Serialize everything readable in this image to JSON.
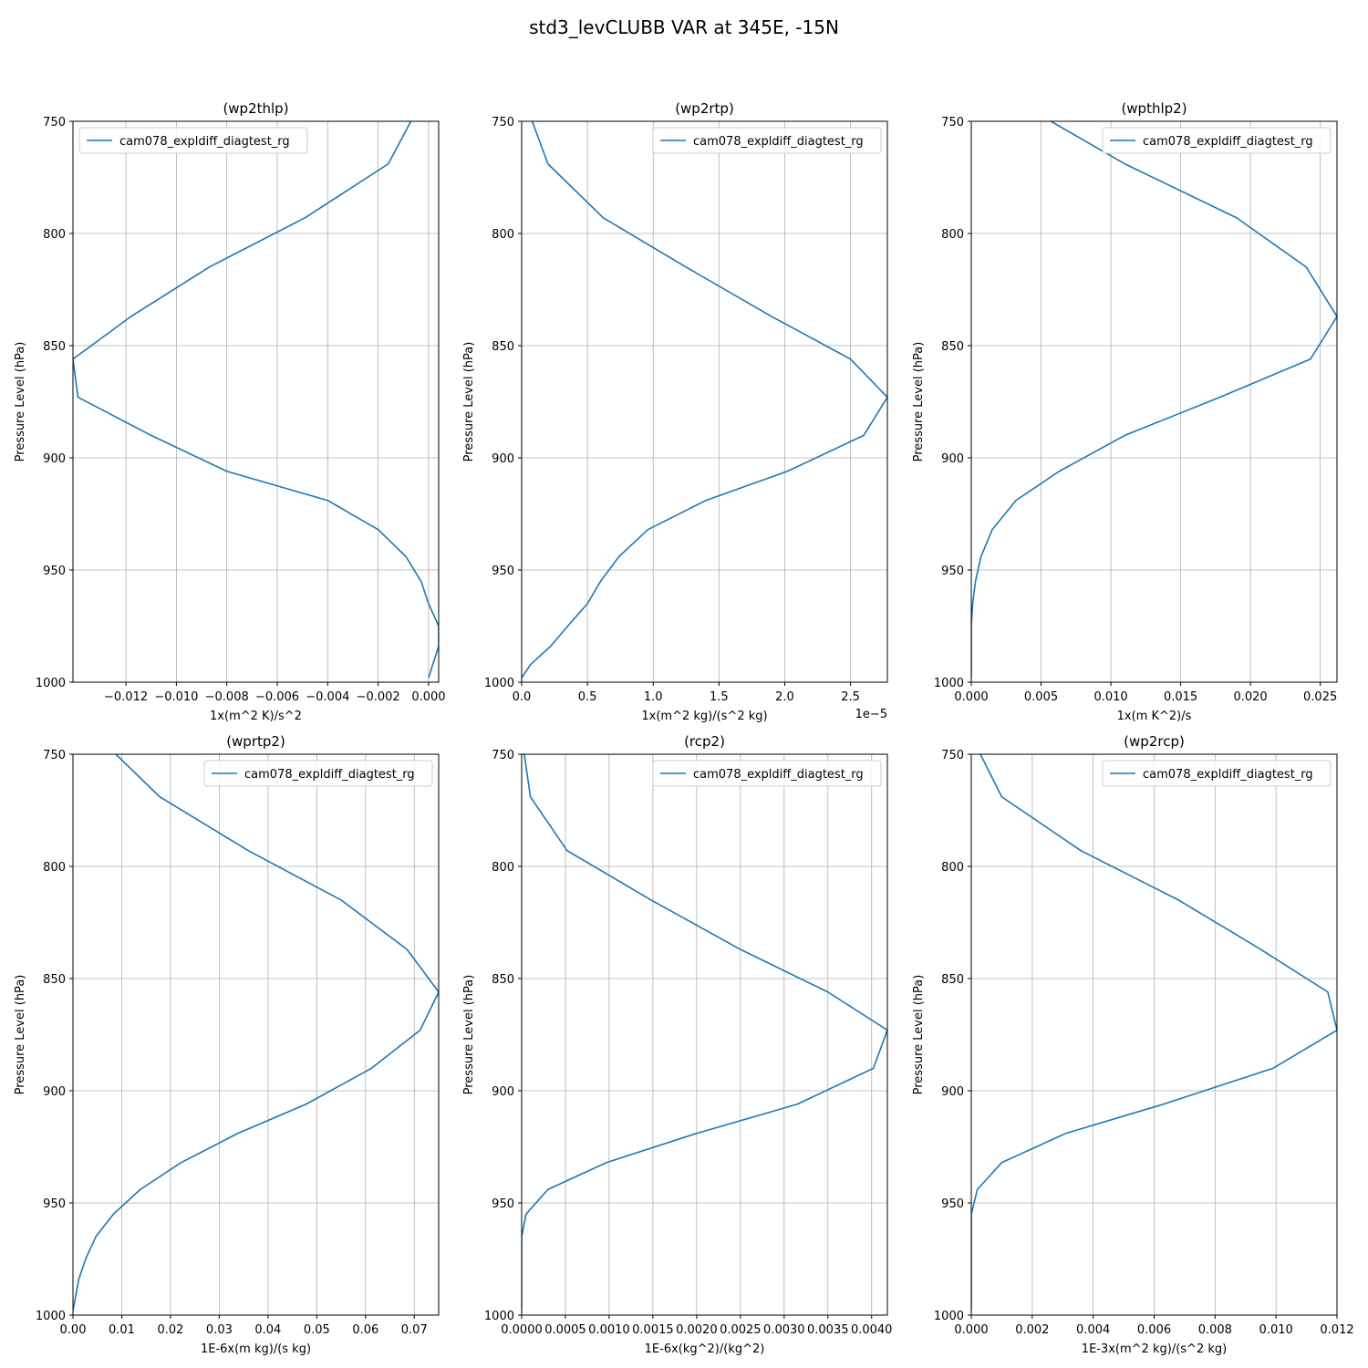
{
  "figure": {
    "title": "std3_levCLUBB VAR at 345E, -15N",
    "series_color": "#1f77b4",
    "grid_color": "#b0b0b0"
  },
  "chart_data": [
    {
      "type": "line",
      "title": "(wp2thlp)",
      "xlabel": "1x(m^2 K)/s^2",
      "ylabel": "Pressure Level (hPa)",
      "offset_text": "",
      "xlim": [
        -0.0141,
        0.0004
      ],
      "ylim": [
        1000,
        750
      ],
      "y_inverted": true,
      "grid": true,
      "legend_loc": "upper left",
      "xticks": [
        -0.012,
        -0.01,
        -0.008,
        -0.006,
        -0.004,
        -0.002,
        0.0
      ],
      "xtick_labels": [
        "−0.012",
        "−0.010",
        "−0.008",
        "−0.006",
        "−0.004",
        "−0.002",
        "0.000"
      ],
      "yticks": [
        750,
        800,
        850,
        900,
        950,
        1000
      ],
      "ytick_labels": [
        "750",
        "800",
        "850",
        "900",
        "950",
        "1000"
      ],
      "series": [
        {
          "name": "cam078_expldiff_diagtest_rg",
          "x": [
            -0.0007,
            -0.0016,
            -0.0049,
            -0.0087,
            -0.0118,
            -0.0141,
            -0.0139,
            -0.011,
            -0.008,
            -0.004,
            -0.002,
            -0.0009,
            -0.0003,
            0.0,
            0.0004,
            0.0004,
            0.0
          ],
          "y": [
            750,
            769,
            793,
            815,
            837,
            856,
            873,
            890,
            906,
            919,
            932,
            944,
            955,
            965,
            975,
            984,
            998
          ]
        }
      ]
    },
    {
      "type": "line",
      "title": "(wp2rtp)",
      "xlabel": "1x(m^2 kg)/(s^2 kg)",
      "ylabel": "Pressure Level (hPa)",
      "offset_text": "1e−5",
      "xlim": [
        0,
        2.78
      ],
      "ylim": [
        1000,
        750
      ],
      "y_inverted": true,
      "grid": true,
      "legend_loc": "upper right",
      "xticks": [
        0.0,
        0.5,
        1.0,
        1.5,
        2.0,
        2.5
      ],
      "xtick_labels": [
        "0.0",
        "0.5",
        "1.0",
        "1.5",
        "2.0",
        "2.5"
      ],
      "yticks": [
        750,
        800,
        850,
        900,
        950,
        1000
      ],
      "ytick_labels": [
        "750",
        "800",
        "850",
        "900",
        "950",
        "1000"
      ],
      "series": [
        {
          "name": "cam078_expldiff_diagtest_rg",
          "x": [
            0.08,
            0.2,
            0.62,
            1.25,
            1.9,
            2.5,
            2.78,
            2.6,
            2.02,
            1.4,
            0.96,
            0.74,
            0.6,
            0.5,
            0.35,
            0.22,
            0.07,
            0.0
          ],
          "y": [
            750,
            769,
            793,
            815,
            837,
            856,
            873,
            890,
            906,
            919,
            932,
            944,
            955,
            965,
            975,
            984,
            992,
            998
          ]
        }
      ]
    },
    {
      "type": "line",
      "title": "(wpthlp2)",
      "xlabel": "1x(m K^2)/s",
      "ylabel": "Pressure Level (hPa)",
      "offset_text": "",
      "xlim": [
        0,
        0.0262
      ],
      "ylim": [
        1000,
        750
      ],
      "y_inverted": true,
      "grid": true,
      "legend_loc": "upper right",
      "xticks": [
        0.0,
        0.005,
        0.01,
        0.015,
        0.02,
        0.025
      ],
      "xtick_labels": [
        "0.000",
        "0.005",
        "0.010",
        "0.015",
        "0.020",
        "0.025"
      ],
      "yticks": [
        750,
        800,
        850,
        900,
        950,
        1000
      ],
      "ytick_labels": [
        "750",
        "800",
        "850",
        "900",
        "950",
        "1000"
      ],
      "series": [
        {
          "name": "cam078_expldiff_diagtest_rg",
          "x": [
            0.0057,
            0.011,
            0.019,
            0.024,
            0.0262,
            0.0243,
            0.0178,
            0.011,
            0.0063,
            0.0032,
            0.0015,
            0.0007,
            0.0003,
            0.0001,
            0.0,
            0.0
          ],
          "y": [
            750,
            769,
            793,
            815,
            837,
            856,
            873,
            890,
            906,
            919,
            932,
            944,
            955,
            965,
            975,
            998
          ]
        }
      ]
    },
    {
      "type": "line",
      "title": "(wprtp2)",
      "xlabel": "1E-6x(m kg)/(s kg)",
      "ylabel": "Pressure Level (hPa)",
      "offset_text": "",
      "xlim": [
        0,
        0.075
      ],
      "ylim": [
        1000,
        750
      ],
      "y_inverted": true,
      "grid": true,
      "legend_loc": "upper right",
      "xticks": [
        0.0,
        0.01,
        0.02,
        0.03,
        0.04,
        0.05,
        0.06,
        0.07
      ],
      "xtick_labels": [
        "0.00",
        "0.01",
        "0.02",
        "0.03",
        "0.04",
        "0.05",
        "0.06",
        "0.07"
      ],
      "yticks": [
        750,
        800,
        850,
        900,
        950,
        1000
      ],
      "ytick_labels": [
        "750",
        "800",
        "850",
        "900",
        "950",
        "1000"
      ],
      "series": [
        {
          "name": "cam078_expldiff_diagtest_rg",
          "x": [
            0.0088,
            0.0178,
            0.036,
            0.055,
            0.0685,
            0.075,
            0.0712,
            0.0612,
            0.0478,
            0.0338,
            0.0222,
            0.0138,
            0.0083,
            0.0047,
            0.0026,
            0.0012,
            0.0
          ],
          "y": [
            750,
            769,
            793,
            815,
            837,
            856,
            873,
            890,
            906,
            919,
            932,
            944,
            955,
            965,
            975,
            984,
            998
          ]
        }
      ]
    },
    {
      "type": "line",
      "title": "(rcp2)",
      "xlabel": "1E-6x(kg^2)/(kg^2)",
      "ylabel": "Pressure Level (hPa)",
      "offset_text": "",
      "xlim": [
        0,
        0.00418
      ],
      "ylim": [
        1000,
        750
      ],
      "y_inverted": true,
      "grid": true,
      "legend_loc": "upper right",
      "xticks": [
        0.0,
        0.0005,
        0.001,
        0.0015,
        0.002,
        0.0025,
        0.003,
        0.0035,
        0.004
      ],
      "xtick_labels": [
        "0.0000",
        "0.0005",
        "0.0010",
        "0.0015",
        "0.0020",
        "0.0025",
        "0.0030",
        "0.0035",
        "0.0040"
      ],
      "yticks": [
        750,
        800,
        850,
        900,
        950,
        1000
      ],
      "ytick_labels": [
        "750",
        "800",
        "850",
        "900",
        "950",
        "1000"
      ],
      "series": [
        {
          "name": "cam078_expldiff_diagtest_rg",
          "x": [
            3e-05,
            0.0001,
            0.00052,
            0.00148,
            0.0025,
            0.0035,
            0.00418,
            0.00402,
            0.00315,
            0.002,
            0.00097,
            0.0003,
            5e-05,
            0.0,
            0.0
          ],
          "y": [
            750,
            769,
            793,
            815,
            837,
            856,
            873,
            890,
            906,
            919,
            932,
            944,
            955,
            965,
            998
          ]
        }
      ]
    },
    {
      "type": "line",
      "title": "(wp2rcp)",
      "xlabel": "1E-3x(m^2 kg)/(s^2 kg)",
      "ylabel": "Pressure Level (hPa)",
      "offset_text": "",
      "xlim": [
        0,
        0.012
      ],
      "ylim": [
        1000,
        750
      ],
      "y_inverted": true,
      "grid": true,
      "legend_loc": "upper right",
      "xticks": [
        0.0,
        0.002,
        0.004,
        0.006,
        0.008,
        0.01,
        0.012
      ],
      "xtick_labels": [
        "0.000",
        "0.002",
        "0.004",
        "0.006",
        "0.008",
        "0.010",
        "0.012"
      ],
      "yticks": [
        750,
        800,
        850,
        900,
        950,
        1000
      ],
      "ytick_labels": [
        "750",
        "800",
        "850",
        "900",
        "950",
        "1000"
      ],
      "series": [
        {
          "name": "cam078_expldiff_diagtest_rg",
          "x": [
            0.0003,
            0.001,
            0.0036,
            0.0068,
            0.0095,
            0.0117,
            0.012,
            0.0099,
            0.0063,
            0.0031,
            0.001,
            0.0002,
            0.0,
            0.0
          ],
          "y": [
            750,
            769,
            793,
            815,
            837,
            856,
            873,
            890,
            906,
            919,
            932,
            944,
            955,
            998
          ]
        }
      ]
    }
  ]
}
